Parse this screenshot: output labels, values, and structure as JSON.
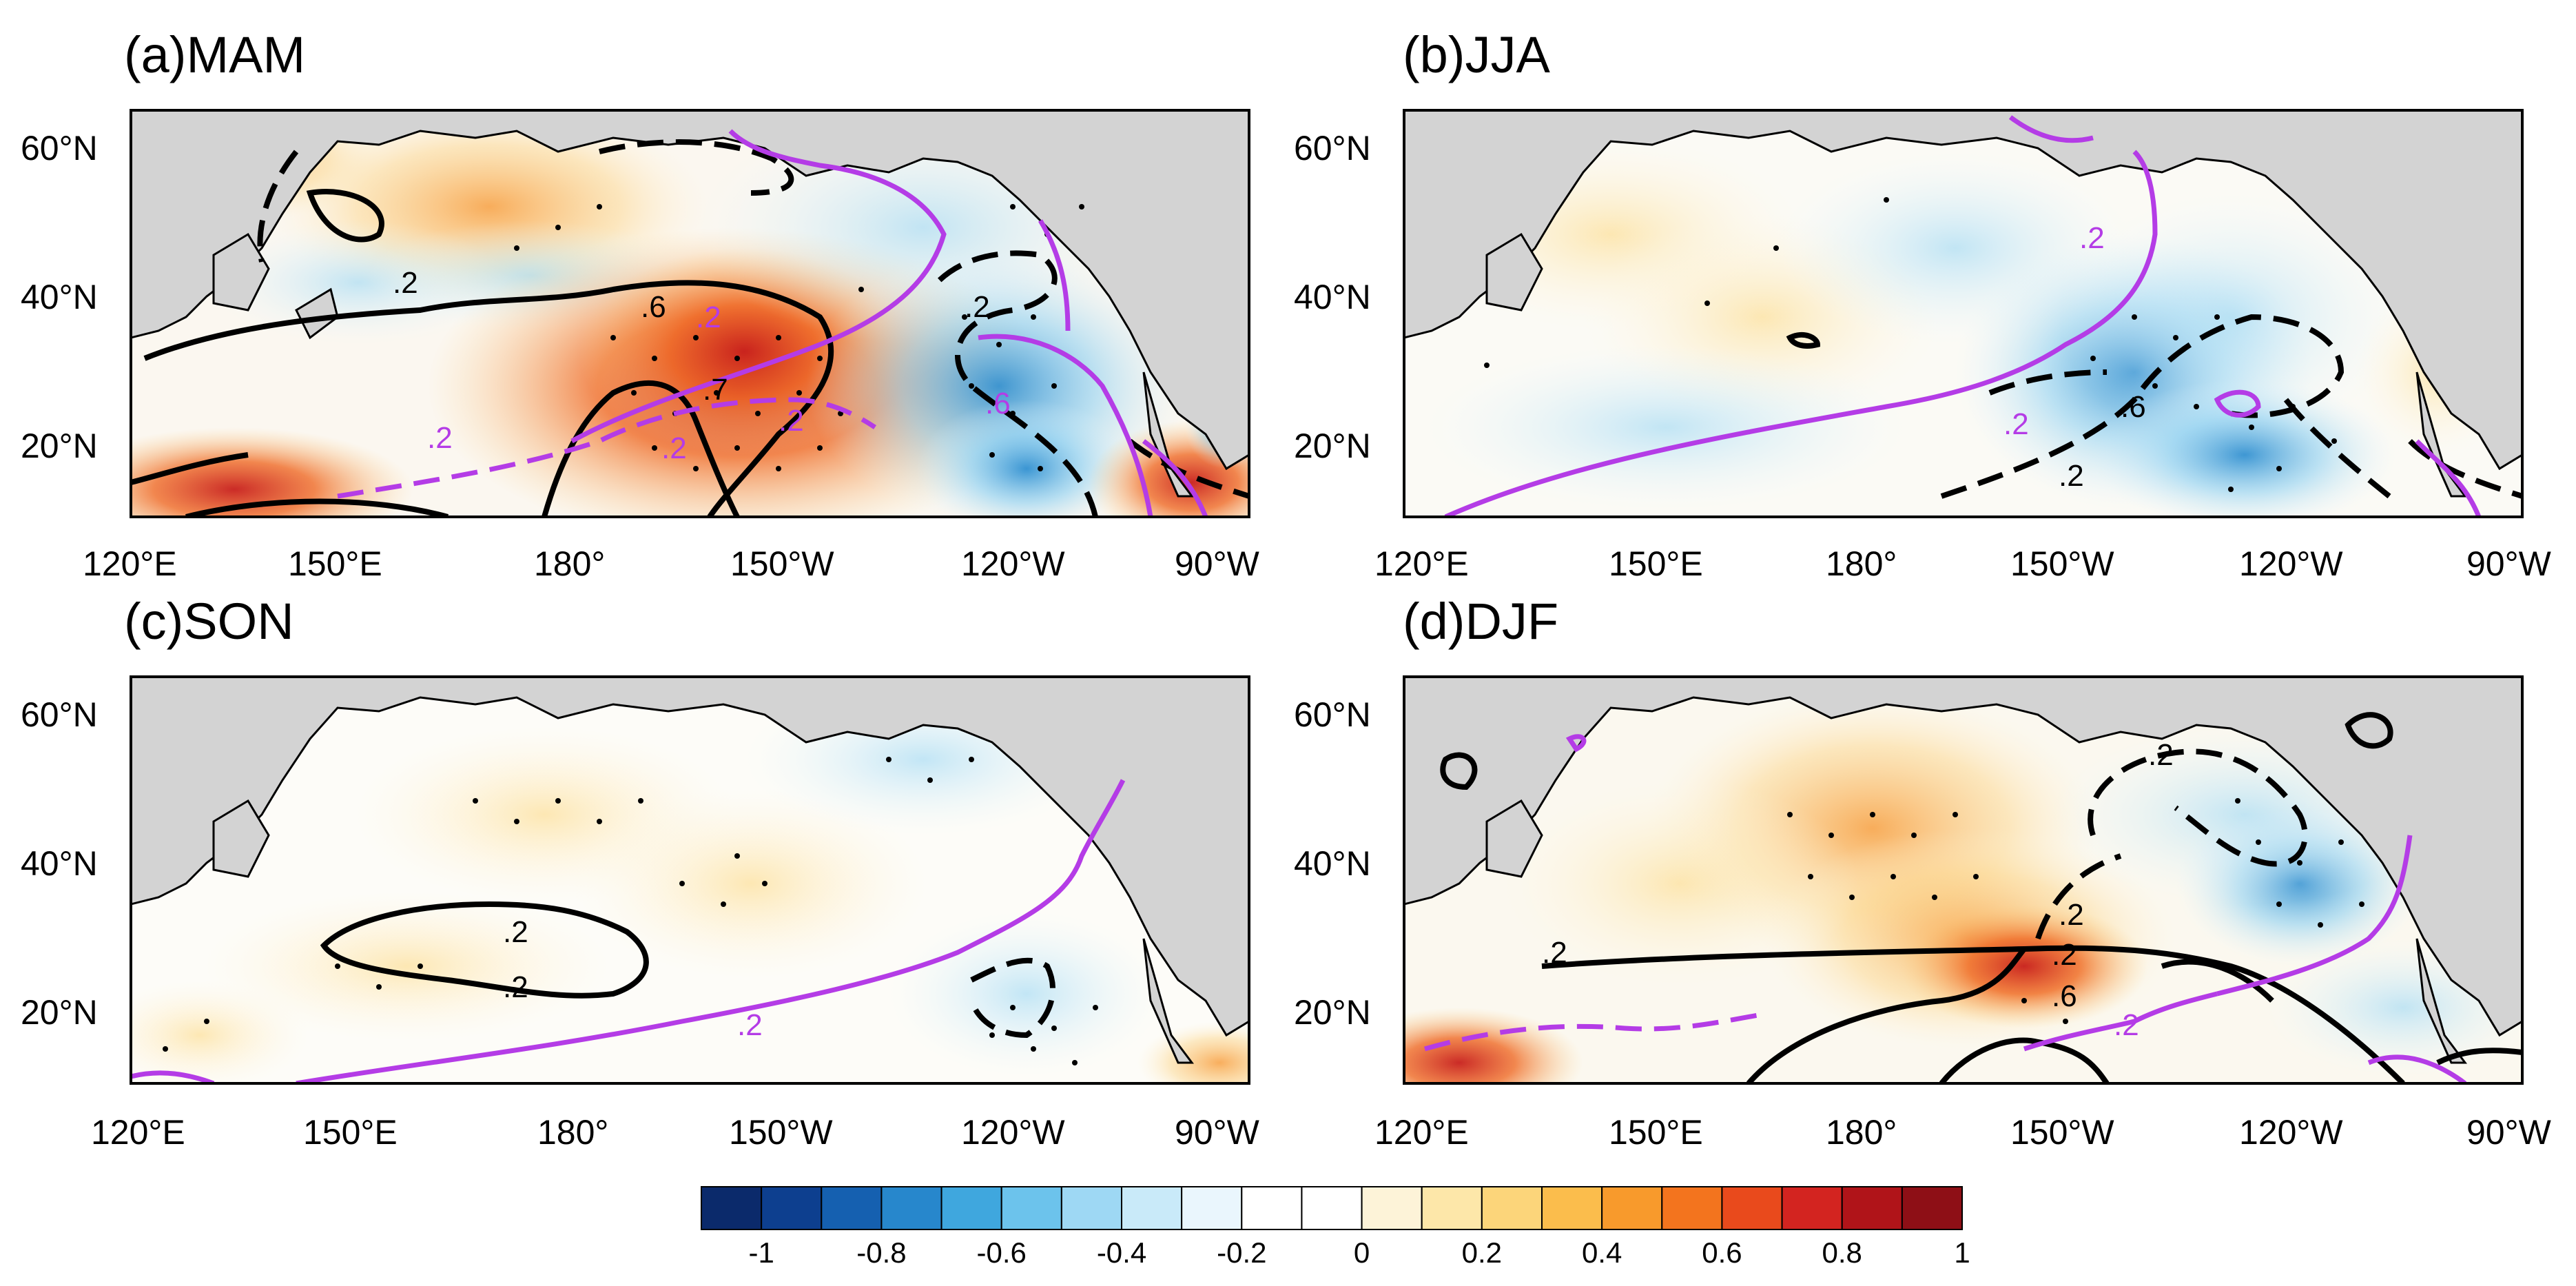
{
  "figure": {
    "panels": [
      {
        "title": "(a)MAM",
        "contour_labels": [
          ".2",
          ".6",
          ".7"
        ],
        "purple_labels": [
          ".2",
          ".2",
          ".2",
          ".2",
          ".6",
          ".2"
        ]
      },
      {
        "title": "(b)JJA",
        "contour_labels": [
          ".2",
          ".6"
        ],
        "purple_labels": [
          ".2",
          ".2"
        ]
      },
      {
        "title": "(c)SON",
        "contour_labels": [
          ".2",
          ".2"
        ],
        "purple_labels": [
          ".2"
        ]
      },
      {
        "title": "(d)DJF",
        "contour_labels": [
          ".2",
          ".2",
          ".2",
          ".2",
          ".6"
        ],
        "purple_labels": [
          ".2"
        ]
      }
    ],
    "lat_ticks": [
      "60°N",
      "40°N",
      "20°N"
    ],
    "lon_ticks": [
      "120°E",
      "150°E",
      "180°",
      "150°W",
      "120°W",
      "90°W"
    ],
    "colorbar": {
      "tick_labels": [
        "-1",
        "-0.8",
        "-0.6",
        "-0.4",
        "-0.2",
        "0",
        "0.2",
        "0.4",
        "0.6",
        "0.8",
        "1"
      ],
      "colors": [
        "#0b2a6b",
        "#0d3f8f",
        "#1560b0",
        "#2787cc",
        "#3fa7de",
        "#6cc3ec",
        "#9ed8f4",
        "#c9eaf9",
        "#eaf6fd",
        "#ffffff",
        "#ffffff",
        "#fdf3d8",
        "#fde7a9",
        "#fcd57a",
        "#fbbd4c",
        "#f89a2c",
        "#f3741e",
        "#e94a1c",
        "#d32420",
        "#b01419",
        "#8e0f16"
      ]
    }
  }
}
